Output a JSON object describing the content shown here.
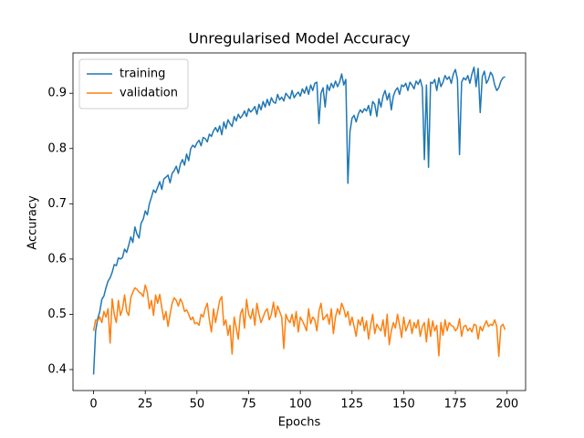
{
  "chart_data": {
    "type": "line",
    "title": "Unregularised Model Accuracy",
    "x_label": "Epochs",
    "y_label": "Accuracy",
    "x": [
      0,
      1,
      2,
      3,
      4,
      5,
      6,
      7,
      8,
      9,
      10,
      11,
      12,
      13,
      14,
      15,
      16,
      17,
      18,
      19,
      20,
      21,
      22,
      23,
      24,
      25,
      26,
      27,
      28,
      29,
      30,
      31,
      32,
      33,
      34,
      35,
      36,
      37,
      38,
      39,
      40,
      41,
      42,
      43,
      44,
      45,
      46,
      47,
      48,
      49,
      50,
      51,
      52,
      53,
      54,
      55,
      56,
      57,
      58,
      59,
      60,
      61,
      62,
      63,
      64,
      65,
      66,
      67,
      68,
      69,
      70,
      71,
      72,
      73,
      74,
      75,
      76,
      77,
      78,
      79,
      80,
      81,
      82,
      83,
      84,
      85,
      86,
      87,
      88,
      89,
      90,
      91,
      92,
      93,
      94,
      95,
      96,
      97,
      98,
      99,
      100,
      101,
      102,
      103,
      104,
      105,
      106,
      107,
      108,
      109,
      110,
      111,
      112,
      113,
      114,
      115,
      116,
      117,
      118,
      119,
      120,
      121,
      122,
      123,
      124,
      125,
      126,
      127,
      128,
      129,
      130,
      131,
      132,
      133,
      134,
      135,
      136,
      137,
      138,
      139,
      140,
      141,
      142,
      143,
      144,
      145,
      146,
      147,
      148,
      149,
      150,
      151,
      152,
      153,
      154,
      155,
      156,
      157,
      158,
      159,
      160,
      161,
      162,
      163,
      164,
      165,
      166,
      167,
      168,
      169,
      170,
      171,
      172,
      173,
      174,
      175,
      176,
      177,
      178,
      179,
      180,
      181,
      182,
      183,
      184,
      185,
      186,
      187,
      188,
      189,
      190,
      191,
      192,
      193,
      194,
      195,
      196,
      197,
      198,
      199
    ],
    "series": [
      {
        "name": "training",
        "color": "#1f77b4",
        "values": [
          0.391,
          0.47,
          0.492,
          0.505,
          0.527,
          0.533,
          0.548,
          0.56,
          0.566,
          0.576,
          0.59,
          0.588,
          0.602,
          0.6,
          0.603,
          0.618,
          0.612,
          0.625,
          0.64,
          0.63,
          0.658,
          0.645,
          0.638,
          0.665,
          0.672,
          0.687,
          0.68,
          0.7,
          0.712,
          0.725,
          0.72,
          0.73,
          0.74,
          0.726,
          0.745,
          0.748,
          0.752,
          0.738,
          0.755,
          0.76,
          0.768,
          0.755,
          0.772,
          0.78,
          0.77,
          0.79,
          0.778,
          0.8,
          0.806,
          0.802,
          0.81,
          0.815,
          0.805,
          0.82,
          0.818,
          0.812,
          0.826,
          0.822,
          0.832,
          0.838,
          0.83,
          0.841,
          0.825,
          0.848,
          0.836,
          0.852,
          0.845,
          0.84,
          0.858,
          0.85,
          0.862,
          0.855,
          0.86,
          0.868,
          0.858,
          0.872,
          0.866,
          0.87,
          0.876,
          0.862,
          0.88,
          0.87,
          0.885,
          0.875,
          0.889,
          0.878,
          0.892,
          0.884,
          0.882,
          0.898,
          0.888,
          0.893,
          0.886,
          0.9,
          0.895,
          0.89,
          0.905,
          0.892,
          0.898,
          0.902,
          0.895,
          0.908,
          0.9,
          0.912,
          0.898,
          0.915,
          0.905,
          0.918,
          0.92,
          0.845,
          0.9,
          0.91,
          0.875,
          0.915,
          0.905,
          0.918,
          0.91,
          0.922,
          0.912,
          0.92,
          0.935,
          0.915,
          0.925,
          0.737,
          0.83,
          0.855,
          0.86,
          0.848,
          0.862,
          0.87,
          0.865,
          0.872,
          0.868,
          0.878,
          0.86,
          0.885,
          0.88,
          0.858,
          0.89,
          0.875,
          0.895,
          0.905,
          0.888,
          0.9,
          0.87,
          0.895,
          0.905,
          0.91,
          0.898,
          0.915,
          0.912,
          0.918,
          0.905,
          0.92,
          0.915,
          0.908,
          0.922,
          0.916,
          0.925,
          0.91,
          0.78,
          0.915,
          0.766,
          0.92,
          0.918,
          0.925,
          0.905,
          0.928,
          0.912,
          0.92,
          0.932,
          0.925,
          0.93,
          0.918,
          0.935,
          0.943,
          0.925,
          0.789,
          0.92,
          0.928,
          0.924,
          0.932,
          0.918,
          0.935,
          0.947,
          0.912,
          0.945,
          0.865,
          0.93,
          0.94,
          0.918,
          0.925,
          0.938,
          0.932,
          0.915,
          0.905,
          0.91,
          0.922,
          0.928,
          0.93
        ]
      },
      {
        "name": "validation",
        "color": "#ff7f0e",
        "values": [
          0.47,
          0.49,
          0.488,
          0.495,
          0.485,
          0.505,
          0.495,
          0.51,
          0.448,
          0.528,
          0.5,
          0.485,
          0.525,
          0.498,
          0.51,
          0.535,
          0.505,
          0.498,
          0.53,
          0.54,
          0.548,
          0.545,
          0.54,
          0.538,
          0.532,
          0.553,
          0.54,
          0.51,
          0.525,
          0.498,
          0.535,
          0.52,
          0.536,
          0.512,
          0.49,
          0.505,
          0.478,
          0.5,
          0.52,
          0.53,
          0.525,
          0.515,
          0.528,
          0.52,
          0.505,
          0.508,
          0.5,
          0.49,
          0.495,
          0.483,
          0.485,
          0.48,
          0.5,
          0.495,
          0.51,
          0.52,
          0.49,
          0.468,
          0.51,
          0.485,
          0.505,
          0.525,
          0.532,
          0.48,
          0.49,
          0.462,
          0.48,
          0.428,
          0.495,
          0.475,
          0.455,
          0.5,
          0.51,
          0.475,
          0.527,
          0.5,
          0.492,
          0.51,
          0.48,
          0.52,
          0.5,
          0.485,
          0.495,
          0.505,
          0.51,
          0.49,
          0.5,
          0.522,
          0.495,
          0.515,
          0.505,
          0.495,
          0.438,
          0.5,
          0.49,
          0.485,
          0.5,
          0.478,
          0.505,
          0.468,
          0.495,
          0.488,
          0.48,
          0.47,
          0.51,
          0.483,
          0.495,
          0.49,
          0.47,
          0.505,
          0.52,
          0.49,
          0.495,
          0.5,
          0.482,
          0.51,
          0.465,
          0.495,
          0.51,
          0.5,
          0.52,
          0.51,
          0.495,
          0.505,
          0.48,
          0.495,
          0.478,
          0.46,
          0.49,
          0.48,
          0.495,
          0.47,
          0.488,
          0.455,
          0.48,
          0.5,
          0.465,
          0.482,
          0.475,
          0.47,
          0.49,
          0.46,
          0.5,
          0.445,
          0.47,
          0.485,
          0.475,
          0.5,
          0.48,
          0.458,
          0.495,
          0.47,
          0.48,
          0.49,
          0.465,
          0.485,
          0.475,
          0.49,
          0.46,
          0.478,
          0.485,
          0.45,
          0.492,
          0.46,
          0.488,
          0.47,
          0.48,
          0.425,
          0.485,
          0.462,
          0.49,
          0.47,
          0.485,
          0.48,
          0.478,
          0.47,
          0.475,
          0.492,
          0.46,
          0.478,
          0.48,
          0.47,
          0.475,
          0.468,
          0.482,
          0.48,
          0.455,
          0.478,
          0.47,
          0.48,
          0.488,
          0.478,
          0.482,
          0.48,
          0.49,
          0.478,
          0.424,
          0.478,
          0.482,
          0.472
        ]
      }
    ],
    "xlim": [
      -9.95,
      208.95
    ],
    "xticks": [
      0,
      25,
      50,
      75,
      100,
      125,
      150,
      175,
      200
    ],
    "ylim": [
      0.362,
      0.973
    ],
    "yticks": [
      0.4,
      0.5,
      0.6,
      0.7,
      0.8,
      0.9
    ],
    "legend": "upper left"
  }
}
